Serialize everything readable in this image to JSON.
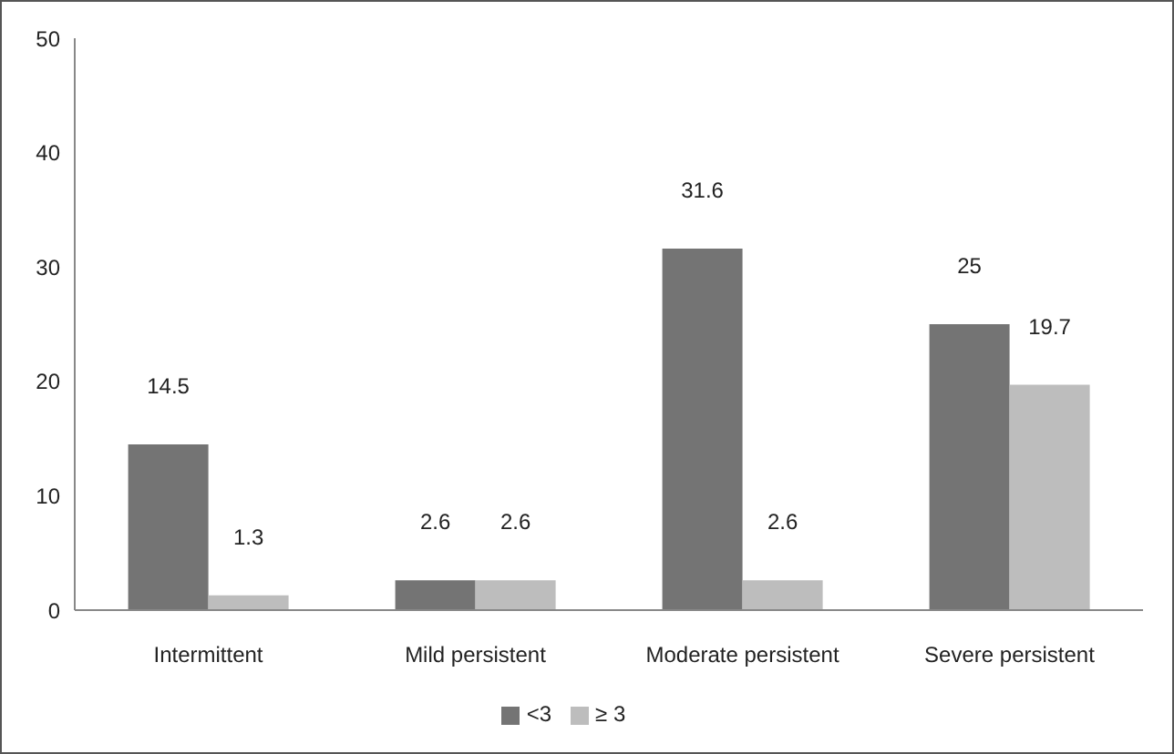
{
  "chart_data": {
    "type": "bar",
    "categories": [
      "Intermittent",
      "Mild persistent",
      "Moderate persistent",
      "Severe persistent"
    ],
    "series": [
      {
        "name": "<3",
        "color": "#747474",
        "values": [
          14.5,
          2.6,
          31.6,
          25
        ]
      },
      {
        "name": "≥ 3",
        "color": "#bdbdbd",
        "values": [
          1.3,
          2.6,
          2.6,
          19.7
        ]
      }
    ],
    "ylim": [
      0,
      50
    ],
    "yticks": [
      0,
      10,
      20,
      30,
      40,
      50
    ],
    "grid": false,
    "legend": "bottom",
    "data_labels": true
  }
}
